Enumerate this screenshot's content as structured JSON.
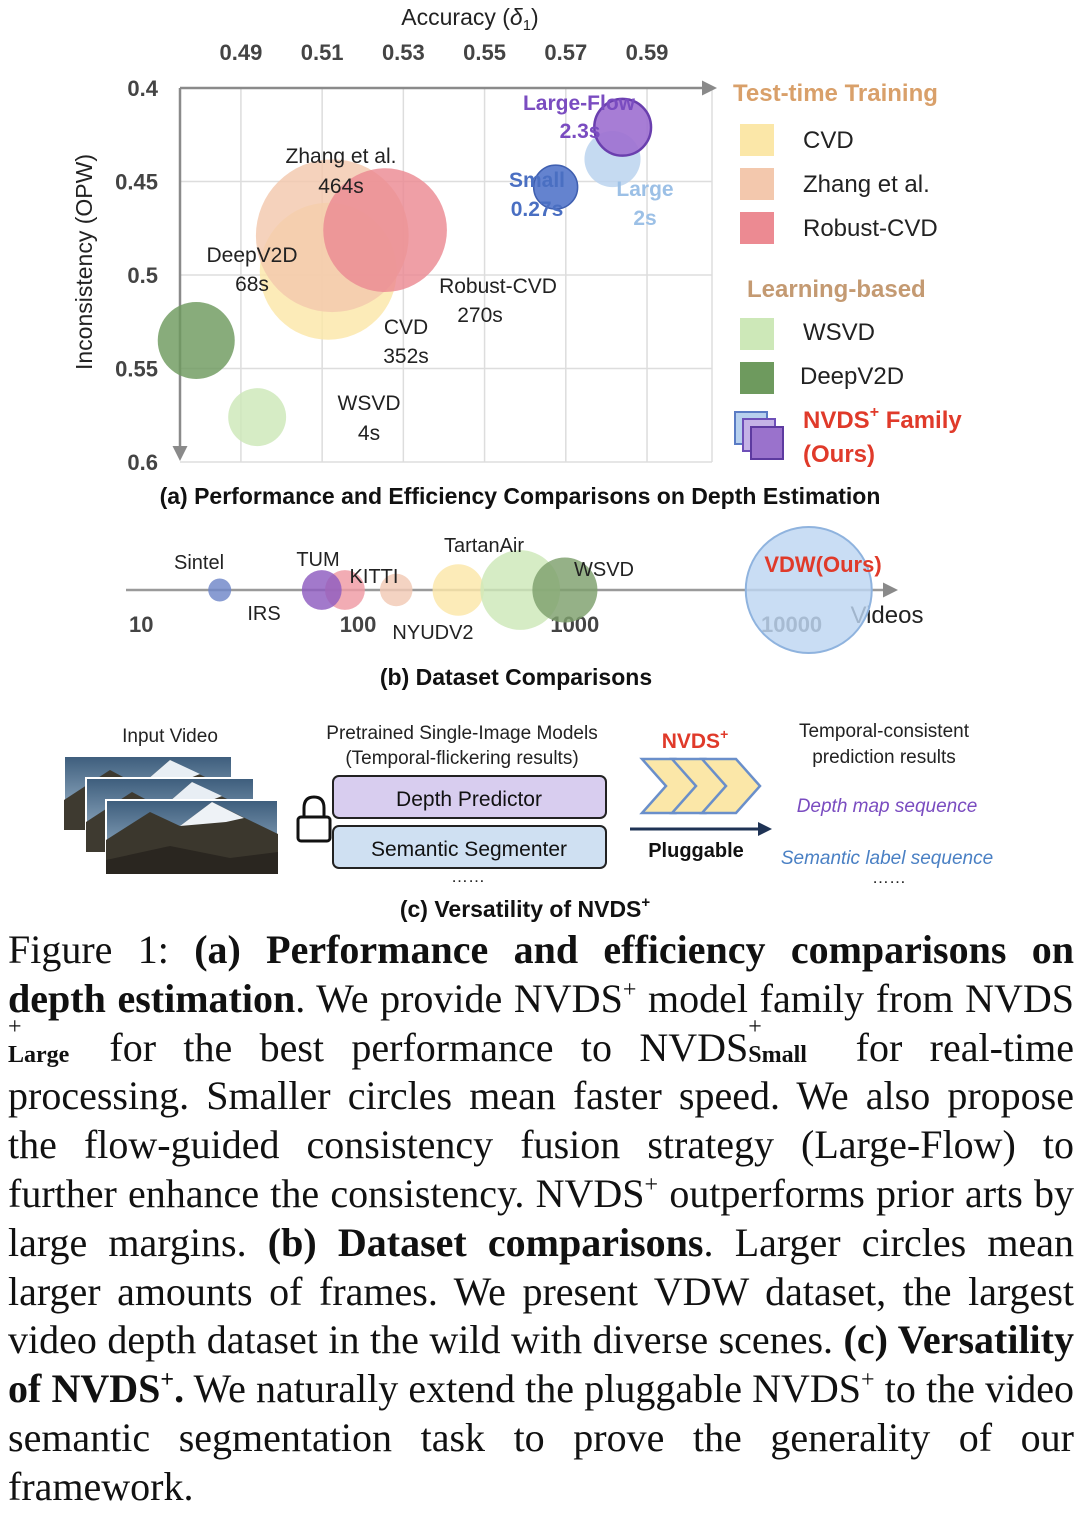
{
  "chart_data": [
    {
      "type": "scatter",
      "title": "(a) Performance and Efficiency Comparisons on Depth Estimation",
      "xlabel": "Accuracy (δ1)",
      "ylabel": "Inconsistency (OPW)",
      "x_ticks": [
        "0.49",
        "0.51",
        "0.53",
        "0.55",
        "0.57",
        "0.59"
      ],
      "y_ticks": [
        "0.4",
        "0.45",
        "0.5",
        "0.55",
        "0.6"
      ],
      "xlim": [
        0.475,
        0.606
      ],
      "ylim": [
        0.6,
        0.4
      ],
      "grid": true,
      "bubble_size": "runtime (smaller circles mean faster speed)",
      "points": [
        {
          "name": "DeepV2D",
          "label": "DeepV2D",
          "time": "68s",
          "x": 0.479,
          "y": 0.535,
          "size": 68,
          "color": "#6e9a5e"
        },
        {
          "name": "WSVD",
          "label": "WSVD",
          "time": "4s",
          "x": 0.494,
          "y": 0.576,
          "size": 24,
          "color": "#cde8b8"
        },
        {
          "name": "CVD",
          "label": "CVD",
          "time": "352s",
          "x": 0.5115,
          "y": 0.498,
          "size": 352,
          "color": "#fbe7a8"
        },
        {
          "name": "Zhang et al.",
          "label": "Zhang et al.",
          "time": "464s",
          "x": 0.5125,
          "y": 0.479,
          "size": 464,
          "color": "#f3c8ad"
        },
        {
          "name": "Robust-CVD",
          "label": "Robust-CVD",
          "time": "270s",
          "x": 0.5255,
          "y": 0.476,
          "size": 270,
          "color": "#ec8a92"
        },
        {
          "name": "Small",
          "label": "Small",
          "time": "0.27s",
          "x": 0.5675,
          "y": 0.453,
          "size": 6,
          "color": "#6483cf"
        },
        {
          "name": "Large",
          "label": "Large",
          "time": "2s",
          "x": 0.5815,
          "y": 0.438,
          "size": 21,
          "color": "#b8d2ee"
        },
        {
          "name": "Large-Flow",
          "label": "Large-Flow",
          "time": "2.3s",
          "x": 0.584,
          "y": 0.421,
          "size": 22,
          "color": "#9d6fd0"
        }
      ],
      "legend": {
        "position": "right",
        "groups": [
          {
            "title": "Test-time Training",
            "color": "#d9a06a",
            "items": [
              {
                "label": "CVD",
                "color": "#fbe7a8"
              },
              {
                "label": "Zhang et al.",
                "color": "#f3c8ad"
              },
              {
                "label": "Robust-CVD",
                "color": "#ec8a92"
              }
            ]
          },
          {
            "title": "Learning-based",
            "color": "#c49a72",
            "items": [
              {
                "label": "WSVD",
                "color": "#cde8b8"
              },
              {
                "label": "DeepV2D",
                "color": "#6e9a5e"
              }
            ]
          }
        ],
        "ours_label": "NVDS",
        "ours_sup": "+",
        "ours_family": "Family",
        "ours_paren": "(Ours)",
        "ours_color": "#e03a2a"
      }
    },
    {
      "type": "scatter",
      "title": "(b) Dataset Comparisons",
      "xlabel": "Videos",
      "x_scale": "log",
      "x_ticks": [
        "10",
        "100",
        "1000",
        "10000"
      ],
      "xlim": [
        8.5,
        30000
      ],
      "bubble_size": "number of frames (larger circles mean larger amounts of frames)",
      "points": [
        {
          "name": "Sintel",
          "x": 23,
          "size": 1,
          "color": "#6f86c8"
        },
        {
          "name": "IRS",
          "x": 68,
          "size": 3,
          "color": "#8e5cc0"
        },
        {
          "name": "TUM",
          "x": 87,
          "size": 3,
          "color": "#ef9aa4"
        },
        {
          "name": "KITTI",
          "x": 150,
          "size": 2,
          "color": "#f2c9b4"
        },
        {
          "name": "NYUDV2",
          "x": 290,
          "size": 5,
          "color": "#fbe7a8"
        },
        {
          "name": "TartanAir",
          "x": 560,
          "size": 12,
          "color": "#cde8b8"
        },
        {
          "name": "WSVD",
          "x": 900,
          "size": 8,
          "color": "#7ea06d"
        },
        {
          "name": "VDW(Ours)",
          "x": 12000,
          "size": 30,
          "color": "#bdd6f1"
        }
      ]
    }
  ],
  "panel_c": {
    "input_label": "Input Video",
    "pretrained_line1": "Pretrained Single-Image Models",
    "pretrained_line2": "(Temporal-flickering results)",
    "depth_predictor": "Depth Predictor",
    "semantic_segmenter": "Semantic Segmenter",
    "dots": "……",
    "nvds_label": "NVDS",
    "nvds_sup": "+",
    "pluggable": "Pluggable",
    "result_line1": "Temporal-consistent",
    "result_line2": "prediction results",
    "depth_seq": "Depth map sequence",
    "semantic_seq": "Semantic label sequence",
    "title": "(c) Versatility of NVDS",
    "title_sup": "+"
  },
  "caption": {
    "fig": "Figure 1:",
    "a_head": "(a) Performance and efficiency comparisons on depth estimation",
    "t1": ". We provide NVDS",
    "t2": " model family from NVDS",
    "large": "Large",
    "t3": " for the best performance to NVDS",
    "small": "Small",
    "t4": " for real-time processing. Smaller circles mean faster speed. We also propose the flow-guided consistency fusion strategy (Large-Flow) to further enhance the consistency. NVDS",
    "t5": " outperforms prior arts by large margins. ",
    "b_head": "(b) Dataset comparisons",
    "t6": ". Larger circles mean larger amounts of frames. We present VDW dataset, the largest video depth dataset in the wild with diverse scenes. ",
    "c_head": "(c) Versatility of NVDS",
    "c_end": ".",
    "t7": " We naturally extend the pluggable NVDS",
    "t8": " to the video semantic segmentation task to prove the generality of our framework.",
    "sup": "+"
  }
}
